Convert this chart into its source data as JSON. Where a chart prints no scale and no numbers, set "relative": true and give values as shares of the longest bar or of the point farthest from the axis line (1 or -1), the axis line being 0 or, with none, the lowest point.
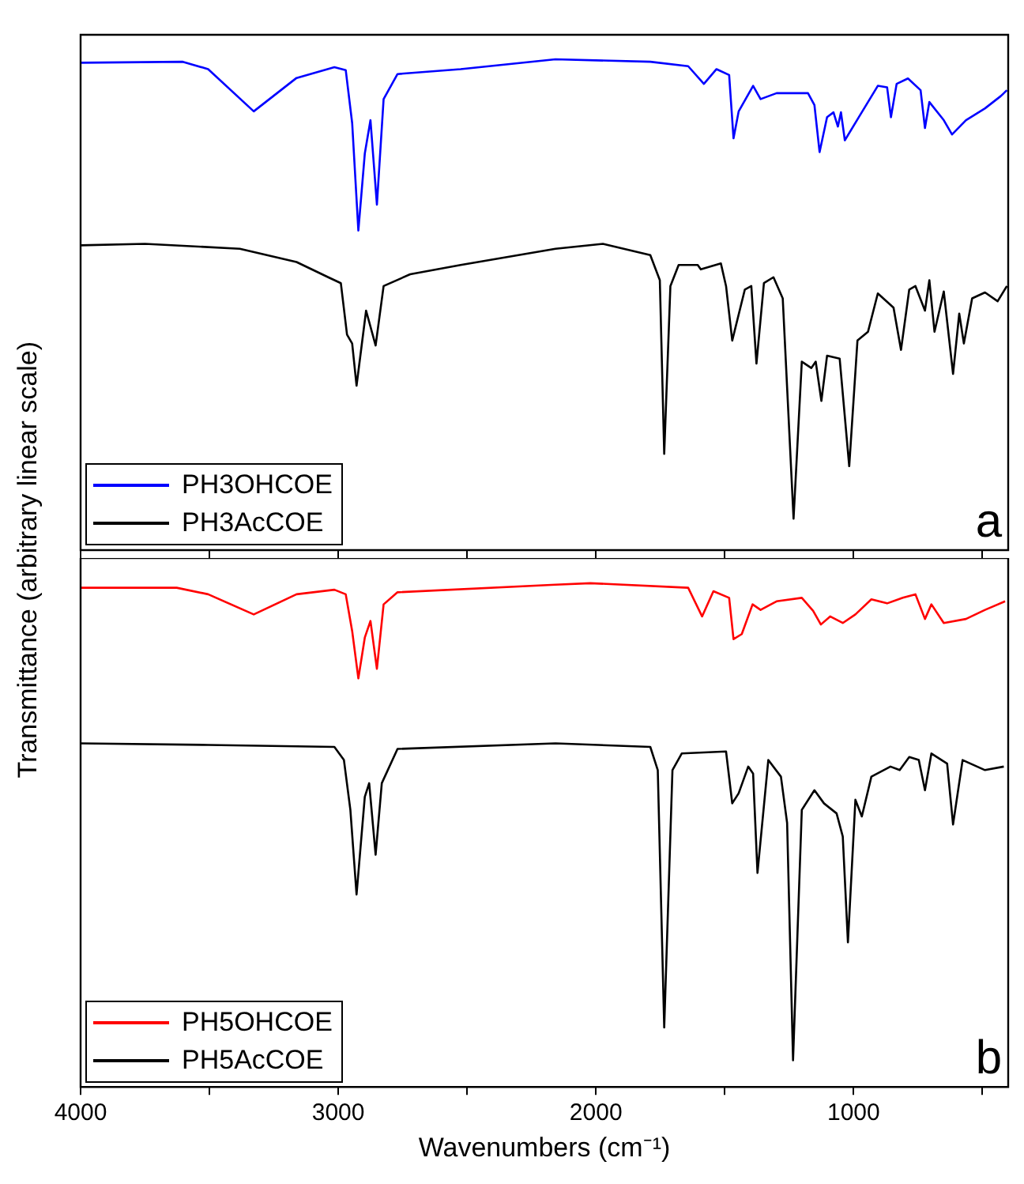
{
  "chart_data": [
    {
      "type": "line",
      "ylabel": "Transmittance (arbitrary linear scale)",
      "relative": true,
      "xlim": [
        4000,
        400
      ],
      "xticks": [
        4000,
        {
          "value": 3500,
          "label": null
        },
        3000,
        {
          "value": 2500,
          "label": null
        },
        2000,
        {
          "value": 1500,
          "label": null
        },
        1000,
        {
          "value": 500,
          "label": null
        }
      ],
      "tick_labels": false,
      "legend": "bottom left",
      "annotations": [
        "a"
      ],
      "series": [
        {
          "name": "PH3OHCOE",
          "color": "#0000ff",
          "x": [
            4000,
            3603,
            3505,
            3328,
            3162,
            3015,
            2971,
            2946,
            2922,
            2897,
            2875,
            2850,
            2824,
            2770,
            2525,
            2157,
            1789,
            1642,
            1581,
            1532,
            1483,
            1466,
            1446,
            1390,
            1361,
            1299,
            1177,
            1152,
            1132,
            1103,
            1078,
            1061,
            1049,
            1034,
            980,
            906,
            870,
            855,
            833,
            789,
            740,
            723,
            706,
            650,
            618,
            564,
            490,
            429,
            405
          ],
          "values": [
            0.993,
            0.995,
            0.98,
            0.894,
            0.962,
            0.984,
            0.978,
            0.87,
            0.651,
            0.808,
            0.876,
            0.704,
            0.919,
            0.97,
            0.98,
            1,
            0.995,
            0.986,
            0.95,
            0.98,
            0.968,
            0.839,
            0.894,
            0.946,
            0.919,
            0.931,
            0.931,
            0.907,
            0.811,
            0.882,
            0.892,
            0.863,
            0.892,
            0.835,
            0.882,
            0.946,
            0.943,
            0.882,
            0.95,
            0.961,
            0.937,
            0.86,
            0.913,
            0.876,
            0.847,
            0.876,
            0.9,
            0.925,
            0.937
          ]
        },
        {
          "name": "PH3AcCOE",
          "color": "#000000",
          "x": [
            4000,
            3750,
            3382,
            3162,
            3039,
            2990,
            2966,
            2946,
            2929,
            2892,
            2855,
            2824,
            2721,
            2525,
            2157,
            1973,
            1789,
            1752,
            1735,
            1711,
            1679,
            1605,
            1593,
            1515,
            1495,
            1471,
            1422,
            1397,
            1377,
            1348,
            1311,
            1275,
            1233,
            1201,
            1164,
            1147,
            1125,
            1103,
            1054,
            1017,
            985,
            944,
            906,
            845,
            816,
            784,
            760,
            723,
            706,
            686,
            650,
            614,
            590,
            572,
            540,
            490,
            441,
            405
          ],
          "values": [
            0.621,
            0.624,
            0.614,
            0.587,
            0.556,
            0.544,
            0.439,
            0.421,
            0.335,
            0.488,
            0.417,
            0.538,
            0.562,
            0.581,
            0.614,
            0.624,
            0.601,
            0.55,
            0.196,
            0.538,
            0.581,
            0.581,
            0.572,
            0.584,
            0.538,
            0.427,
            0.531,
            0.538,
            0.38,
            0.544,
            0.556,
            0.513,
            0.064,
            0.384,
            0.371,
            0.384,
            0.304,
            0.396,
            0.39,
            0.171,
            0.427,
            0.445,
            0.523,
            0.494,
            0.408,
            0.531,
            0.538,
            0.488,
            0.55,
            0.445,
            0.527,
            0.359,
            0.482,
            0.421,
            0.513,
            0.525,
            0.507,
            0.538
          ]
        }
      ]
    },
    {
      "type": "line",
      "xlabel": "Wavenumbers (cm⁻¹)",
      "relative": true,
      "xlim": [
        4000,
        400
      ],
      "xticks": [
        4000,
        {
          "value": 3500,
          "label": null
        },
        3000,
        {
          "value": 2500,
          "label": null
        },
        2000,
        {
          "value": 1500,
          "label": null
        },
        1000,
        {
          "value": 500,
          "label": null
        }
      ],
      "tick_labels": "x",
      "legend": "bottom left",
      "annotations": [
        "b"
      ],
      "series": [
        {
          "name": "PH5OHCOE",
          "color": "#ff0000",
          "x": [
            4000,
            3627,
            3505,
            3328,
            3162,
            3015,
            2971,
            2946,
            2922,
            2897,
            2875,
            2850,
            2824,
            2770,
            2157,
            2022,
            1642,
            1588,
            1544,
            1483,
            1466,
            1434,
            1392,
            1361,
            1299,
            1201,
            1157,
            1127,
            1091,
            1042,
            993,
            931,
            870,
            809,
            760,
            723,
            698,
            650,
            564,
            490,
            412
          ],
          "values": [
            0.991,
            0.991,
            0.978,
            0.938,
            0.978,
            0.987,
            0.978,
            0.905,
            0.811,
            0.892,
            0.925,
            0.83,
            0.958,
            0.982,
            0.997,
            1,
            0.991,
            0.934,
            0.984,
            0.971,
            0.889,
            0.899,
            0.958,
            0.947,
            0.964,
            0.971,
            0.945,
            0.918,
            0.934,
            0.921,
            0.938,
            0.968,
            0.96,
            0.971,
            0.978,
            0.929,
            0.958,
            0.921,
            0.929,
            0.947,
            0.964
          ]
        },
        {
          "name": "PH5AcCOE",
          "color": "#000000",
          "x": [
            4000,
            3505,
            3015,
            2978,
            2953,
            2929,
            2897,
            2880,
            2855,
            2831,
            2770,
            2157,
            1789,
            1760,
            1735,
            1703,
            1667,
            1495,
            1471,
            1446,
            1409,
            1390,
            1373,
            1331,
            1282,
            1258,
            1235,
            1201,
            1152,
            1115,
            1066,
            1042,
            1022,
            993,
            968,
            931,
            857,
            821,
            784,
            747,
            723,
            698,
            637,
            614,
            577,
            490,
            417
          ],
          "values": [
            0.682,
            0.679,
            0.675,
            0.649,
            0.55,
            0.382,
            0.576,
            0.603,
            0.461,
            0.603,
            0.671,
            0.682,
            0.675,
            0.629,
            0.118,
            0.629,
            0.662,
            0.666,
            0.563,
            0.583,
            0.636,
            0.622,
            0.425,
            0.649,
            0.616,
            0.524,
            0.053,
            0.55,
            0.589,
            0.563,
            0.543,
            0.497,
            0.287,
            0.57,
            0.537,
            0.616,
            0.636,
            0.629,
            0.655,
            0.649,
            0.589,
            0.662,
            0.642,
            0.521,
            0.649,
            0.629,
            0.636
          ]
        }
      ]
    }
  ]
}
